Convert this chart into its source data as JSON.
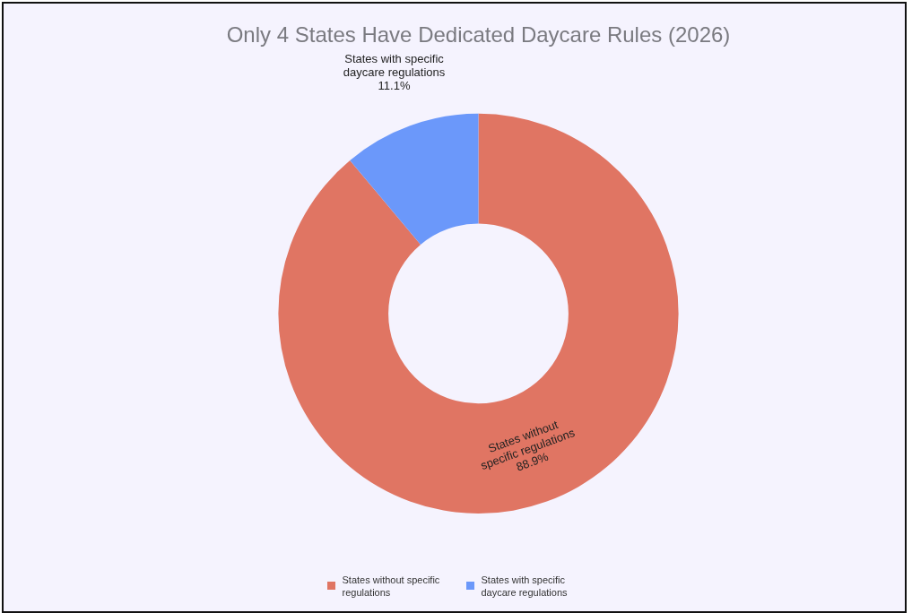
{
  "chart_data": {
    "type": "donut",
    "title": "Only 4 States Have Dedicated Daycare Rules (2026)",
    "categories": [
      "States without specific regulations",
      "States with specific daycare regulations"
    ],
    "values": [
      88.9,
      11.1
    ],
    "colors": [
      "#e07563",
      "#6b98fa"
    ],
    "value_labels": [
      "88.9%",
      "11.1%"
    ],
    "legend": "bottom"
  }
}
